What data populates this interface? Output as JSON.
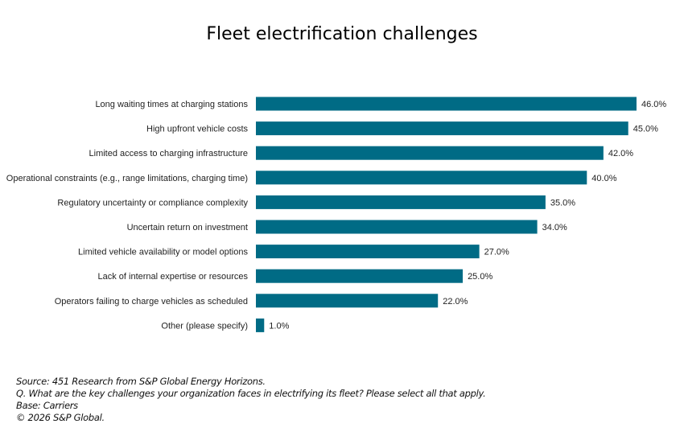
{
  "chart_data": {
    "type": "bar",
    "orientation": "horizontal",
    "title": "Fleet electrification challenges",
    "categories": [
      "Long waiting times at charging stations",
      "High upfront vehicle costs",
      "Limited access to charging infrastructure",
      "Operational constraints (e.g., range limitations, charging time)",
      "Regulatory uncertainty or compliance complexity",
      "Uncertain return on investment",
      "Limited vehicle availability or model options",
      "Lack of internal expertise or resources",
      "Operators failing to charge vehicles as scheduled",
      "Other (please specify)"
    ],
    "values": [
      46.0,
      45.0,
      42.0,
      40.0,
      35.0,
      34.0,
      27.0,
      25.0,
      22.0,
      1.0
    ],
    "value_labels": [
      "46.0%",
      "45.0%",
      "42.0%",
      "40.0%",
      "35.0%",
      "34.0%",
      "27.0%",
      "25.0%",
      "22.0%",
      "1.0%"
    ],
    "xlabel": "",
    "ylabel": "",
    "xlim": [
      0,
      46
    ],
    "grid": false,
    "bar_color": "#006b85"
  },
  "footer": {
    "source": "Source: 451 Research from S&P Global Energy Horizons.",
    "question": "Q. What are the key challenges your organization faces in electrifying its fleet? Please select all that apply.",
    "base": "Base: Carriers",
    "copyright": "© 2026 S&P Global."
  }
}
